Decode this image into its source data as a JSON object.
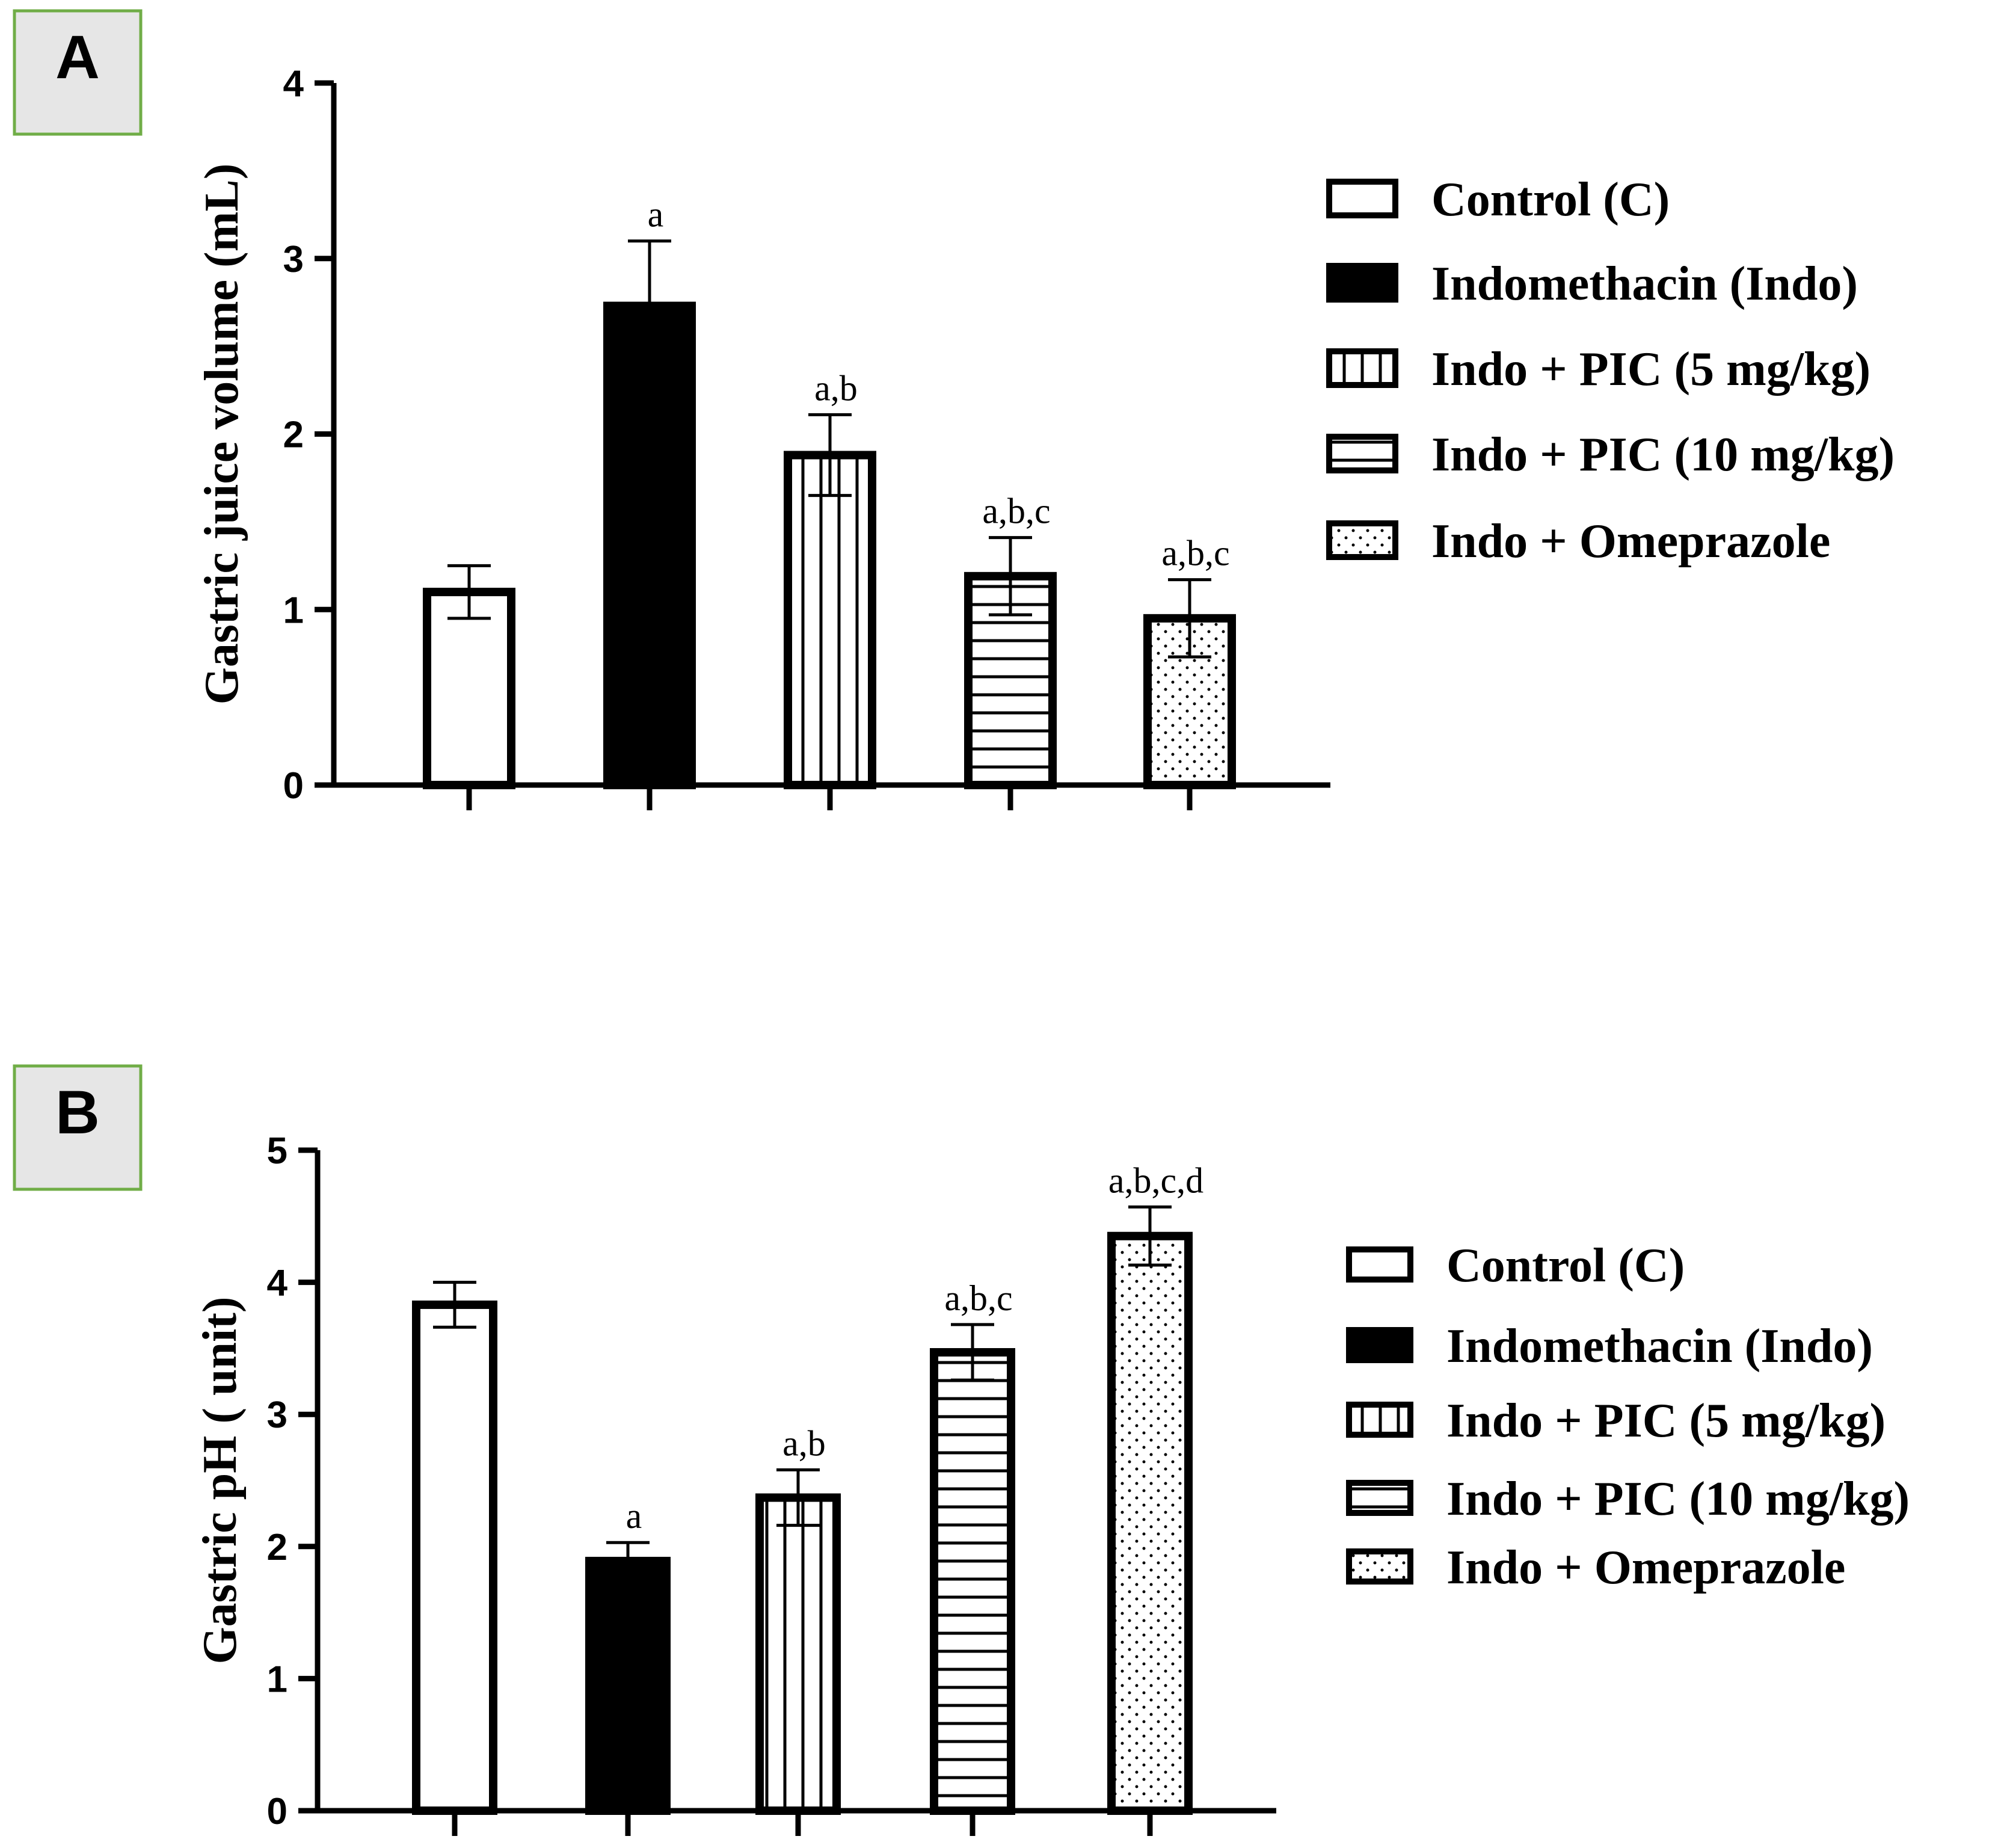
{
  "panels": [
    {
      "panel_label": "A",
      "legend": [
        "Control (C)",
        "Indomethacin (Indo)",
        "Indo + PIC (5 mg/kg)",
        "Indo + PIC (10 mg/kg)",
        "Indo + Omeprazole"
      ],
      "chart_data": {
        "type": "bar",
        "ylabel": "Gastric juice volume (mL)",
        "ylim": [
          0,
          4
        ],
        "yticks": [
          0,
          1,
          2,
          3,
          4
        ],
        "categories": [
          "Control (C)",
          "Indomethacin (Indo)",
          "Indo + PIC (5 mg/kg)",
          "Indo + PIC (10 mg/kg)",
          "Indo + Omeprazole"
        ],
        "values": [
          1.1,
          2.73,
          1.88,
          1.19,
          0.95
        ],
        "errors": [
          0.15,
          0.37,
          0.23,
          0.22,
          0.22
        ],
        "significance": [
          "",
          "a",
          "a,b",
          "a,b,c",
          "a,b,c"
        ],
        "patterns": [
          "empty",
          "solid",
          "vertical",
          "horizontal",
          "dots"
        ],
        "legend_position": "right",
        "grid": false
      }
    },
    {
      "panel_label": "B",
      "legend": [
        "Control (C)",
        "Indomethacin (Indo)",
        "Indo + PIC (5 mg/kg)",
        "Indo + PIC (10 mg/kg)",
        "Indo + Omeprazole"
      ],
      "chart_data": {
        "type": "bar",
        "ylabel": "Gastric pH ( unit)",
        "ylim": [
          0,
          5
        ],
        "yticks": [
          0,
          1,
          2,
          3,
          4,
          5
        ],
        "categories": [
          "Control (C)",
          "Indomethacin (Indo)",
          "Indo + PIC (5 mg/kg)",
          "Indo + PIC (10 mg/kg)",
          "Indo + Omeprazole"
        ],
        "values": [
          3.83,
          1.89,
          2.37,
          3.47,
          4.35
        ],
        "errors": [
          0.17,
          0.14,
          0.21,
          0.21,
          0.22
        ],
        "significance": [
          "",
          "a",
          "a,b",
          "a,b,c",
          "a,b,c,d"
        ],
        "patterns": [
          "empty",
          "solid",
          "vertical",
          "horizontal",
          "dots"
        ],
        "legend_position": "right",
        "grid": false
      }
    }
  ]
}
